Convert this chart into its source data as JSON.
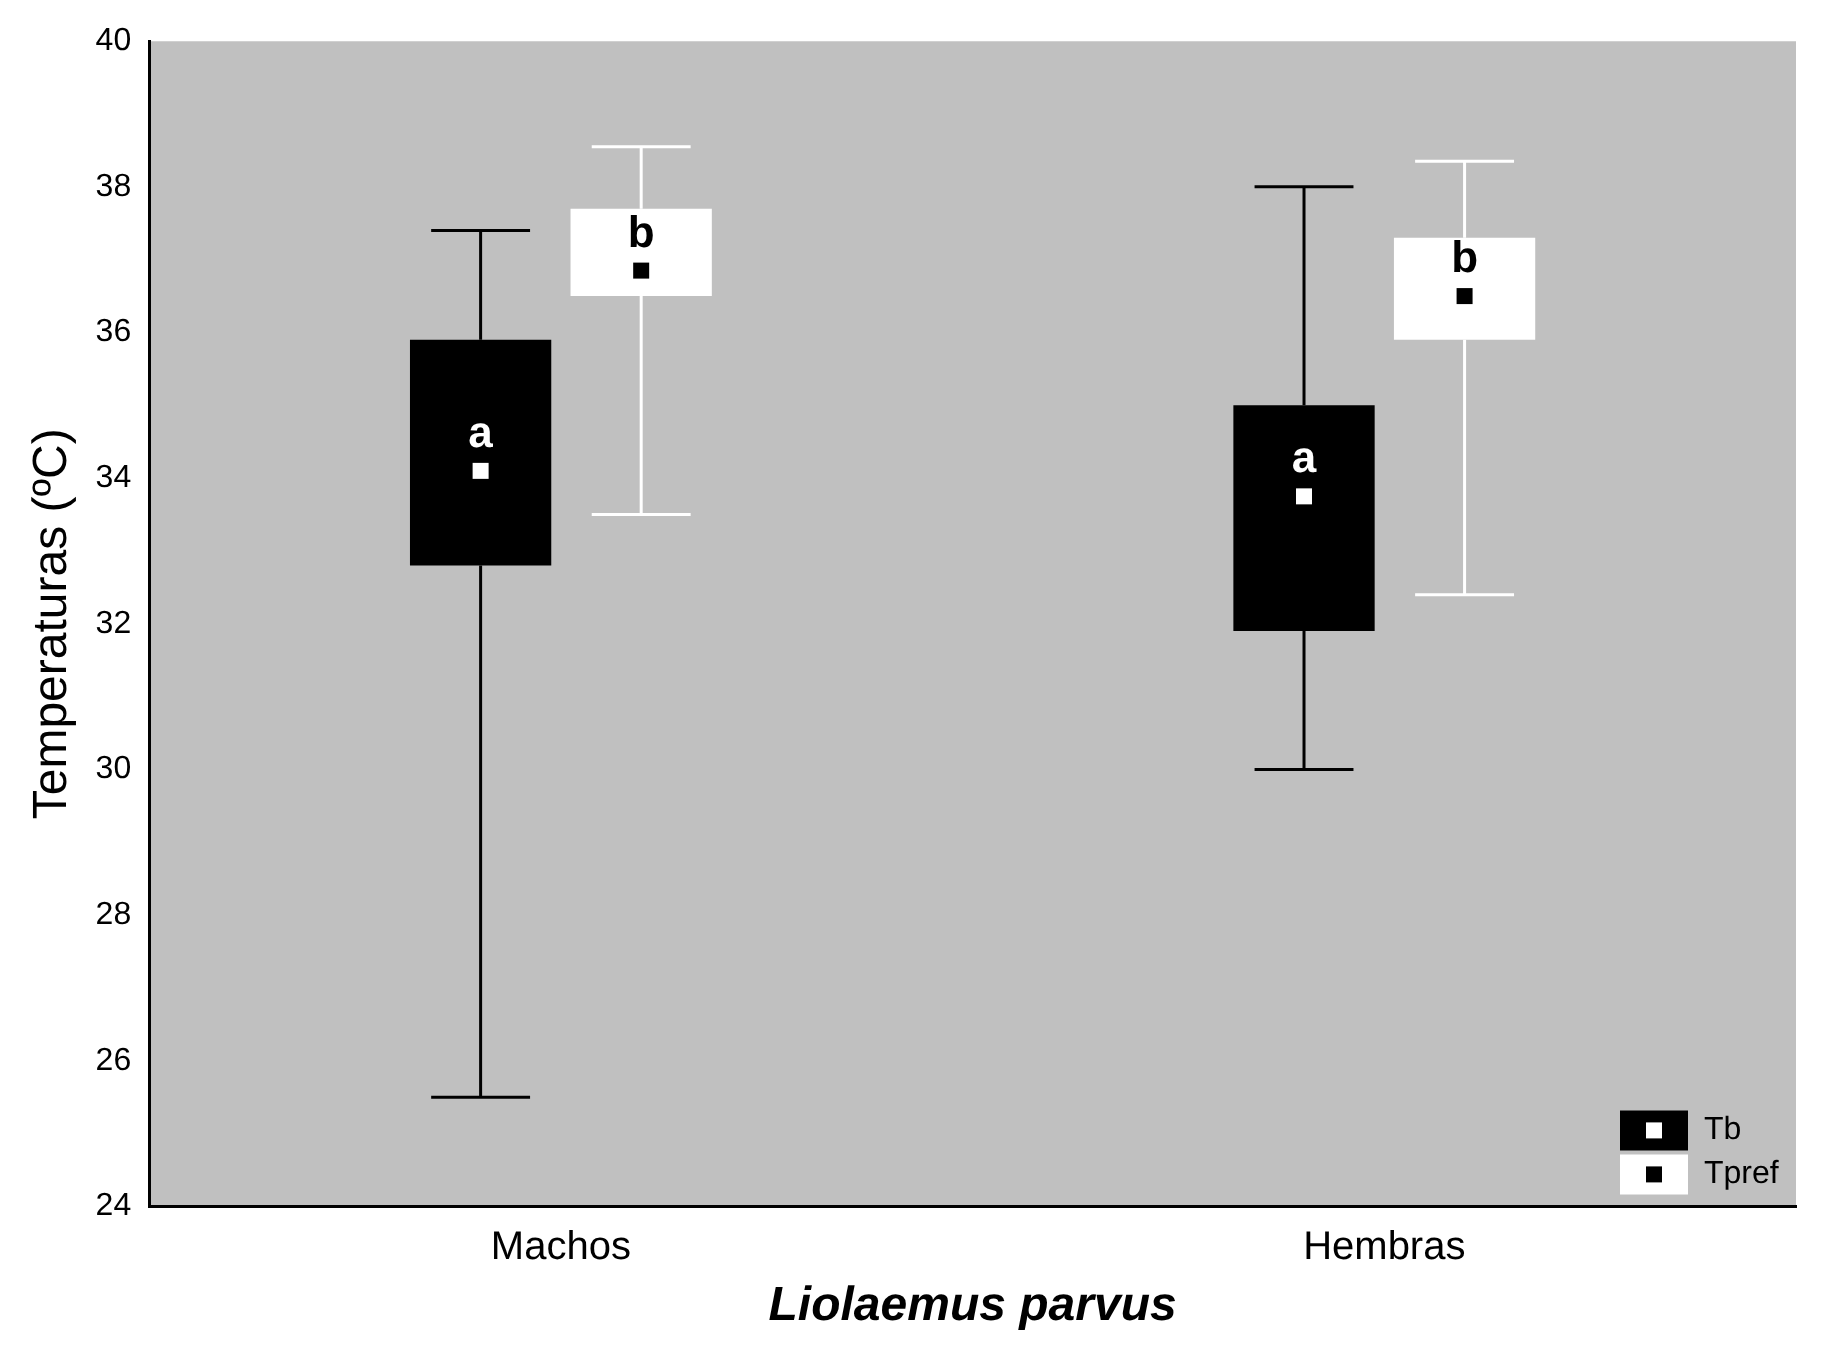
{
  "chart_data": {
    "type": "box",
    "xlabel": "Liolaemus parvus",
    "ylabel": "Temperaturas (ºC)",
    "categories": [
      "Machos",
      "Hembras"
    ],
    "series": [
      {
        "name": "Tb",
        "color": "#000000",
        "boxes": [
          {
            "low": 25.5,
            "q1": 32.8,
            "median": 34.1,
            "q3": 35.9,
            "high": 37.4
          },
          {
            "low": 30.0,
            "q1": 31.9,
            "median": 33.75,
            "q3": 35.0,
            "high": 38.0
          }
        ]
      },
      {
        "name": "Tpref",
        "color": "#ffffff",
        "boxes": [
          {
            "low": 33.5,
            "q1": 36.5,
            "median": 36.85,
            "q3": 37.7,
            "high": 38.55
          },
          {
            "low": 32.4,
            "q1": 35.9,
            "median": 36.5,
            "q3": 37.3,
            "high": 38.35
          }
        ]
      }
    ],
    "annotations": [
      "a",
      "b",
      "a",
      "b"
    ],
    "ylim": [
      24,
      40
    ],
    "yticks": [
      24,
      26,
      28,
      30,
      32,
      34,
      36,
      38,
      40
    ],
    "grid": false,
    "legend": "bottom right"
  }
}
